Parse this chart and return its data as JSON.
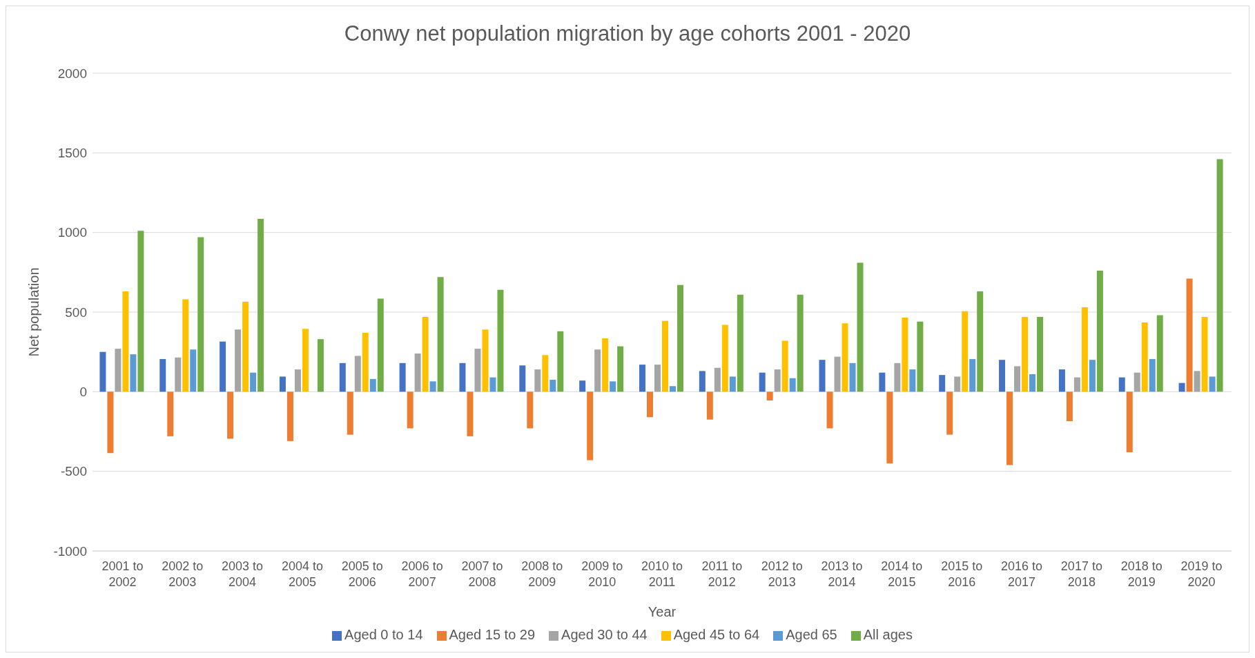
{
  "chart_data": {
    "type": "bar",
    "title": "Conwy net population migration by age cohorts 2001 - 2020",
    "xlabel": "Year",
    "ylabel": "Net population",
    "categories": [
      "2001 to 2002",
      "2002 to 2003",
      "2003 to 2004",
      "2004 to 2005",
      "2005 to 2006",
      "2006 to 2007",
      "2007 to 2008",
      "2008 to 2009",
      "2009 to 2010",
      "2010 to 2011",
      "2011 to 2012",
      "2012 to 2013",
      "2013 to 2014",
      "2014 to 2015",
      "2015 to 2016",
      "2016 to 2017",
      "2017 to 2018",
      "2018 to 2019",
      "2019 to 2020"
    ],
    "series": [
      {
        "name": "Aged 0 to 14",
        "color": "#4472c4",
        "values": [
          250,
          205,
          315,
          95,
          180,
          180,
          180,
          165,
          70,
          170,
          130,
          120,
          200,
          120,
          105,
          200,
          140,
          90,
          55
        ]
      },
      {
        "name": "Aged 15 to 29",
        "color": "#ed7d31",
        "values": [
          -385,
          -280,
          -295,
          -310,
          -270,
          -230,
          -280,
          -230,
          -430,
          -160,
          -175,
          -55,
          -230,
          -450,
          -270,
          -460,
          -185,
          -380,
          710
        ]
      },
      {
        "name": "Aged 30 to 44",
        "color": "#a5a5a5",
        "values": [
          270,
          215,
          390,
          140,
          225,
          240,
          270,
          140,
          265,
          170,
          150,
          140,
          220,
          180,
          95,
          160,
          90,
          120,
          130
        ]
      },
      {
        "name": "Aged 45 to 64",
        "color": "#ffc000",
        "values": [
          630,
          580,
          565,
          395,
          370,
          470,
          390,
          230,
          335,
          445,
          420,
          320,
          430,
          465,
          505,
          470,
          530,
          435,
          470
        ]
      },
      {
        "name": "Aged 65",
        "color": "#5b9bd5",
        "values": [
          235,
          265,
          120,
          null,
          80,
          65,
          90,
          75,
          65,
          35,
          95,
          85,
          180,
          140,
          205,
          110,
          200,
          205,
          95
        ]
      },
      {
        "name": "All ages",
        "color": "#70ad47",
        "values": [
          1010,
          970,
          1085,
          330,
          585,
          720,
          640,
          380,
          285,
          670,
          610,
          610,
          810,
          440,
          630,
          470,
          760,
          480,
          1460
        ]
      }
    ],
    "ylim": [
      -1000,
      2000
    ],
    "yticks": [
      -1000,
      -500,
      0,
      500,
      1000,
      1500,
      2000
    ],
    "grid": "y",
    "legend": "bottom"
  }
}
